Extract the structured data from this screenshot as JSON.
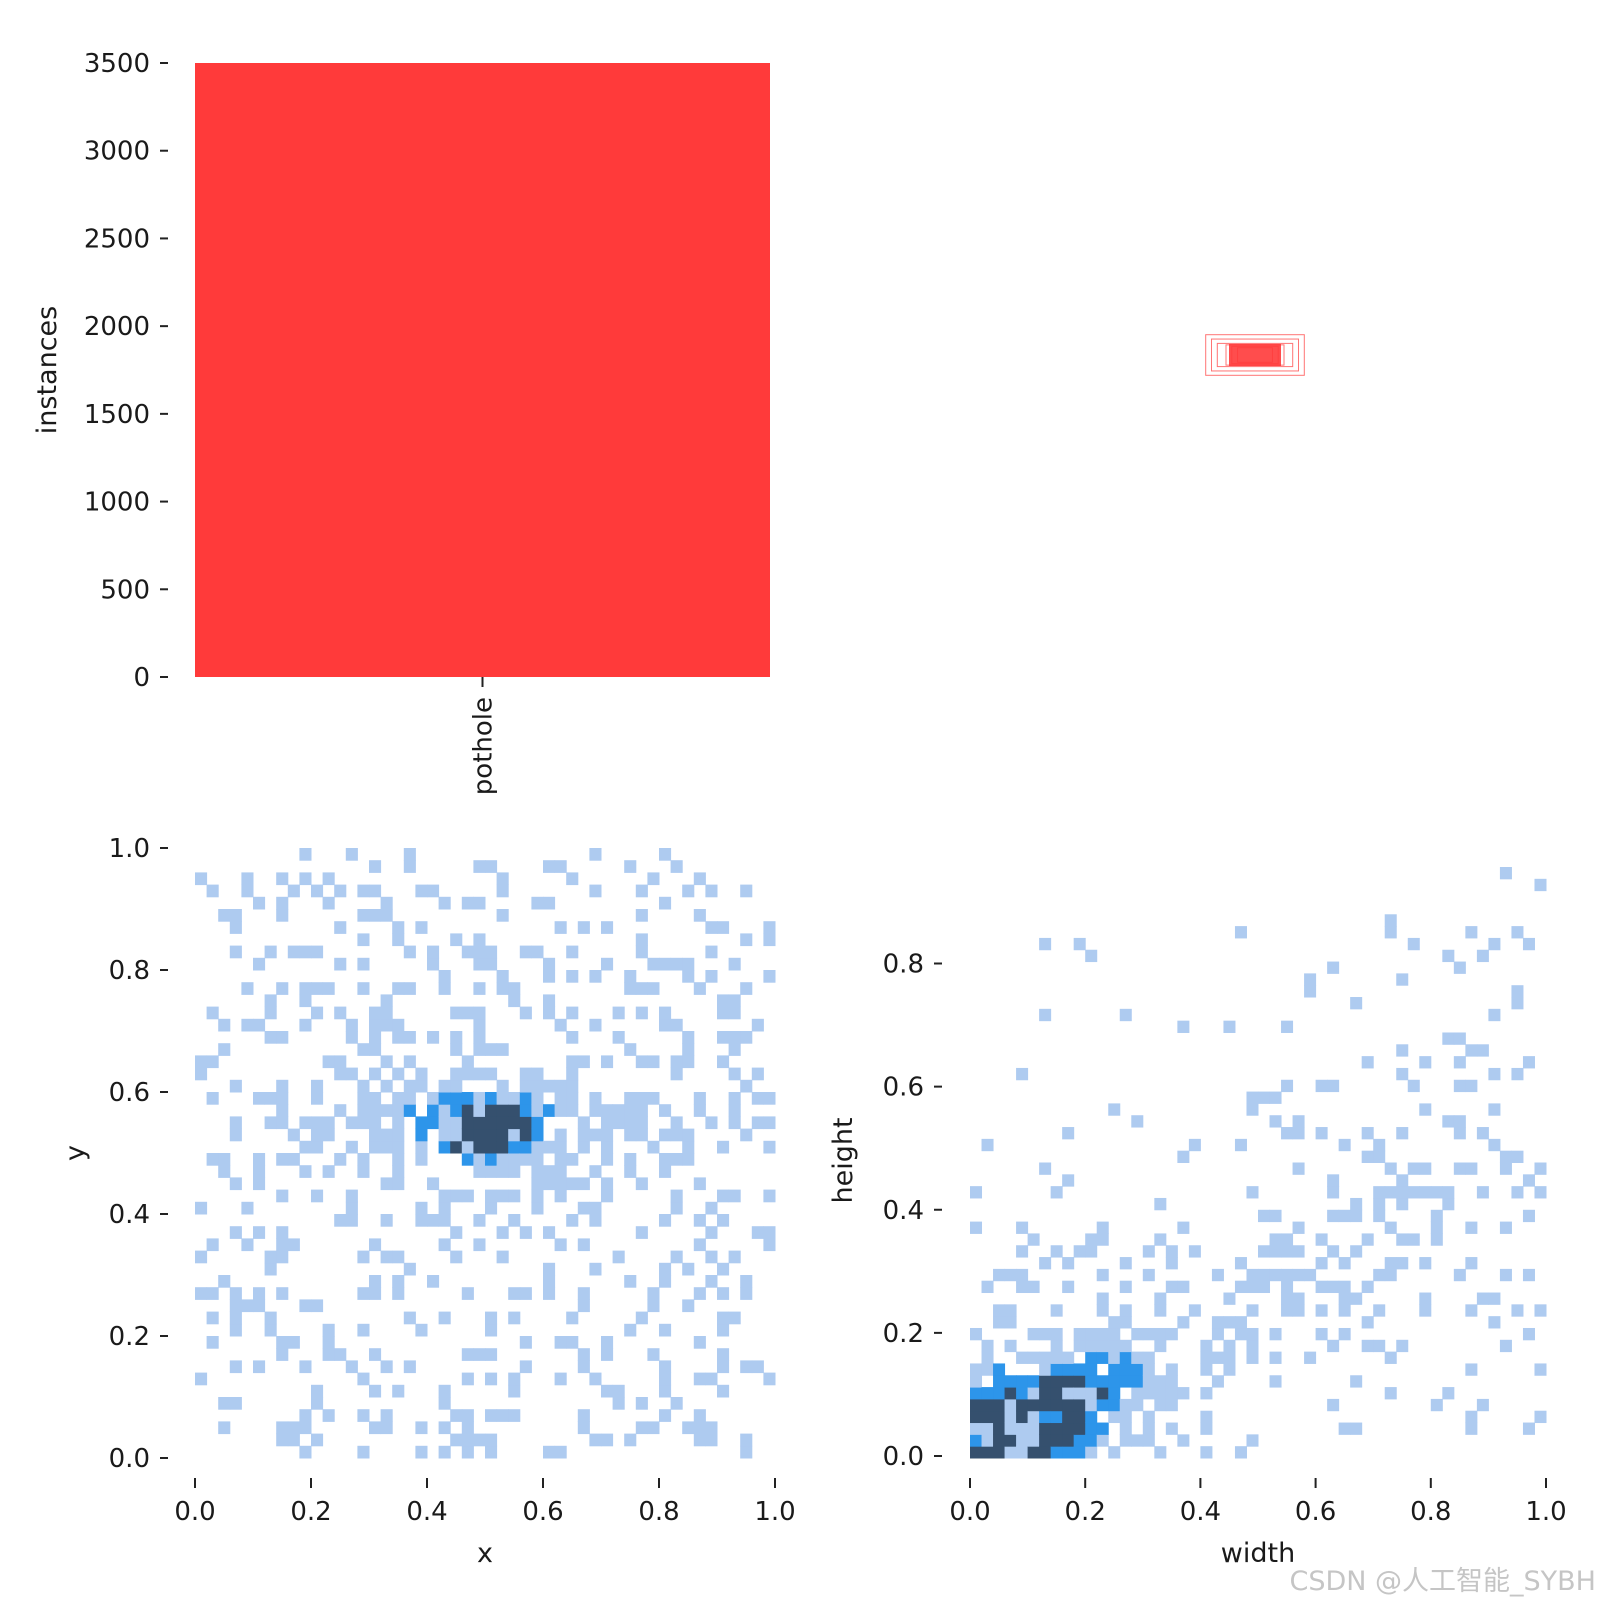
{
  "chart_data": [
    {
      "type": "bar",
      "categories": [
        "pothole"
      ],
      "values": [
        3500
      ],
      "ylabel": "instances",
      "ylim": [
        0,
        3500
      ],
      "yticks": [
        0,
        500,
        1000,
        1500,
        2000,
        2500,
        3000,
        3500
      ],
      "color": "#ff3a3a"
    },
    {
      "type": "box-overlay",
      "description_boxes": [
        {
          "w": 0.17,
          "h": 0.07
        },
        {
          "w": 0.15,
          "h": 0.055
        },
        {
          "w": 0.13,
          "h": 0.04
        },
        {
          "w": 0.1,
          "h": 0.035
        },
        {
          "w": 0.08,
          "h": 0.03
        },
        {
          "w": 0.06,
          "h": 0.025
        }
      ],
      "color": "#ff3a3a"
    },
    {
      "type": "heatmap",
      "xlabel": "x",
      "ylabel": "y",
      "xlim": [
        0,
        1
      ],
      "ylim": [
        0,
        1
      ],
      "xticks": [
        "0.0",
        "0.2",
        "0.4",
        "0.6",
        "0.8",
        "1.0"
      ],
      "yticks": [
        "0.0",
        "0.2",
        "0.4",
        "0.6",
        "0.8",
        "1.0"
      ],
      "bins": 50,
      "peak": {
        "x": 0.5,
        "y": 0.52
      },
      "band_y": [
        0.45,
        0.65
      ],
      "colors": [
        "#aecbf0",
        "#2d95ea",
        "#35506e"
      ]
    },
    {
      "type": "heatmap",
      "xlabel": "width",
      "ylabel": "height",
      "xlim": [
        0,
        1
      ],
      "ylim": [
        0,
        0.96
      ],
      "xticks": [
        "0.0",
        "0.2",
        "0.4",
        "0.6",
        "0.8",
        "1.0"
      ],
      "yticks": [
        "0.0",
        "0.2",
        "0.4",
        "0.6",
        "0.8"
      ],
      "bins": 50,
      "peak": {
        "x": 0.02,
        "y": 0.01
      },
      "trend_slope": 0.9,
      "colors": [
        "#aecbf0",
        "#2d95ea",
        "#35506e"
      ]
    }
  ],
  "watermark": "CSDN @人工智能_SYBH"
}
